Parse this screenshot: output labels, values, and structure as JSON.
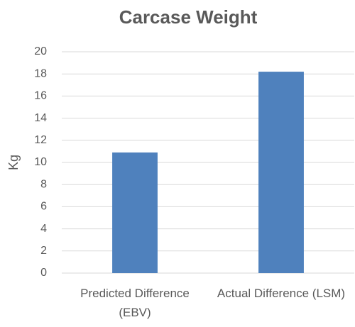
{
  "chart_data": {
    "type": "bar",
    "title": "Carcase Weight",
    "y_label": "Kg",
    "categories": [
      "Predicted Difference (EBV)",
      "Actual Difference (LSM)"
    ],
    "values": [
      10.9,
      18.2
    ],
    "color": "#4f81bd",
    "ylim": [
      0,
      20
    ],
    "yticks": [
      0,
      2,
      4,
      6,
      8,
      10,
      12,
      14,
      16,
      18,
      20
    ],
    "grid": true
  }
}
